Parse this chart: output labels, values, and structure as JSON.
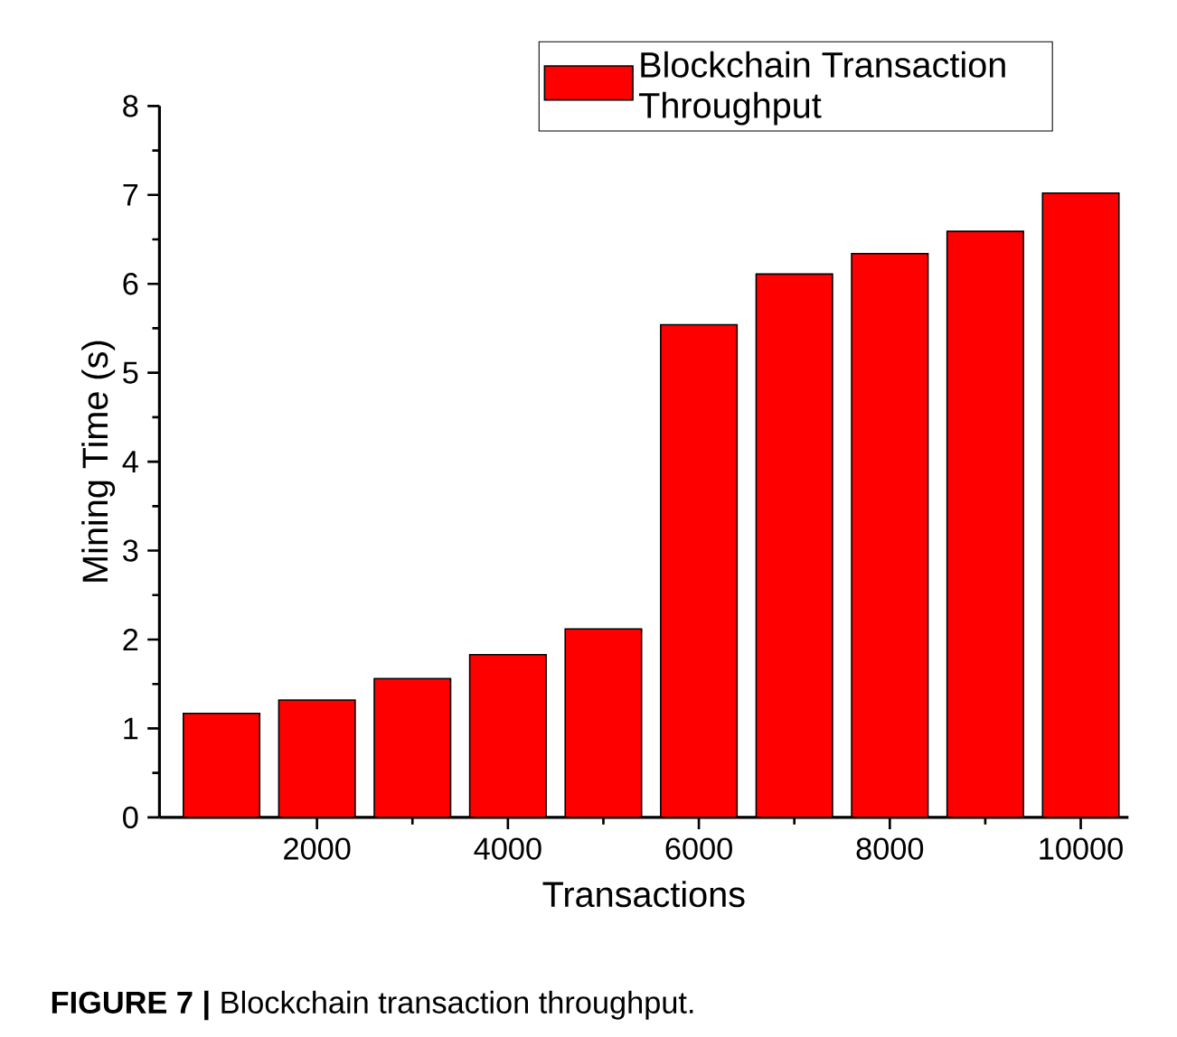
{
  "chart_data": {
    "type": "bar",
    "xlabel": "Transactions",
    "ylabel": "Mining Time (s)",
    "x": [
      1000,
      2000,
      3000,
      4000,
      5000,
      6000,
      7000,
      8000,
      9000,
      10000
    ],
    "series": [
      {
        "name": "Blockchain Transaction Throughput",
        "color": "#ff0000",
        "values": [
          1.17,
          1.32,
          1.56,
          1.83,
          2.12,
          5.54,
          6.11,
          6.34,
          6.59,
          7.02
        ]
      }
    ],
    "xlim": [
      350,
      10500
    ],
    "ylim": [
      0,
      8
    ],
    "xticks": [
      2000,
      4000,
      6000,
      8000,
      10000
    ],
    "yticks": [
      0,
      1,
      2,
      3,
      4,
      5,
      6,
      7,
      8
    ],
    "legend": "top right",
    "annotations": [
      "**FIGURE 7 |** Blockchain transaction throughput."
    ]
  }
}
